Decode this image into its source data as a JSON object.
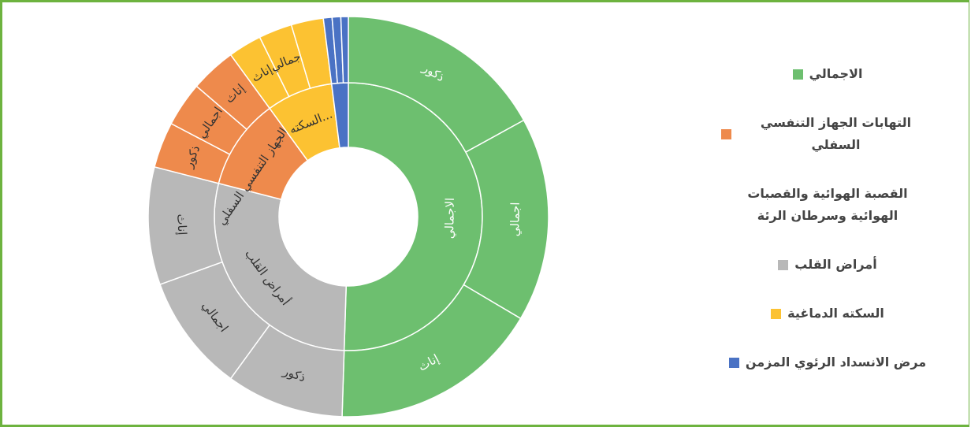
{
  "chart_data": {
    "type": "sunburst",
    "series": [
      {
        "name": "الاجمالي",
        "color": "#6dbf6f",
        "labels": [
          "ذكور",
          "اجمالي",
          "إناث"
        ],
        "values": [
          17,
          16.5,
          17
        ]
      },
      {
        "name": "أمراض القلب",
        "color": "#b8b8b8",
        "labels": [
          "ذكور",
          "اجمالي",
          "إناث"
        ],
        "values": [
          9.5,
          9.5,
          9.5
        ]
      },
      {
        "name": "التهابات الجهاز التنفسي السفلي",
        "color": "#ee8a4c",
        "labels": [
          "ذكور",
          "اجمالي",
          "إناث"
        ],
        "values": [
          3.7,
          3.6,
          3.7
        ]
      },
      {
        "name": "السكته الدماغية",
        "ring_label": "السكته...",
        "color": "#fcc232",
        "labels": [
          "إناث",
          "اجمالي",
          null
        ],
        "values": [
          2.7,
          2.7,
          2.6
        ]
      },
      {
        "name": "مرض الانسداد الرئوي المزمن",
        "color": "#4a72c4",
        "labels": [
          null,
          null,
          null
        ],
        "values": [
          0.7,
          0.7,
          0.6
        ]
      },
      {
        "name": "القصبة الهوائية والقصبات الهوائية وسرطان الرئة",
        "color": "none",
        "labels": [],
        "values": []
      }
    ],
    "legend_order": [
      0,
      2,
      5,
      1,
      3,
      4
    ],
    "legend": "right"
  }
}
